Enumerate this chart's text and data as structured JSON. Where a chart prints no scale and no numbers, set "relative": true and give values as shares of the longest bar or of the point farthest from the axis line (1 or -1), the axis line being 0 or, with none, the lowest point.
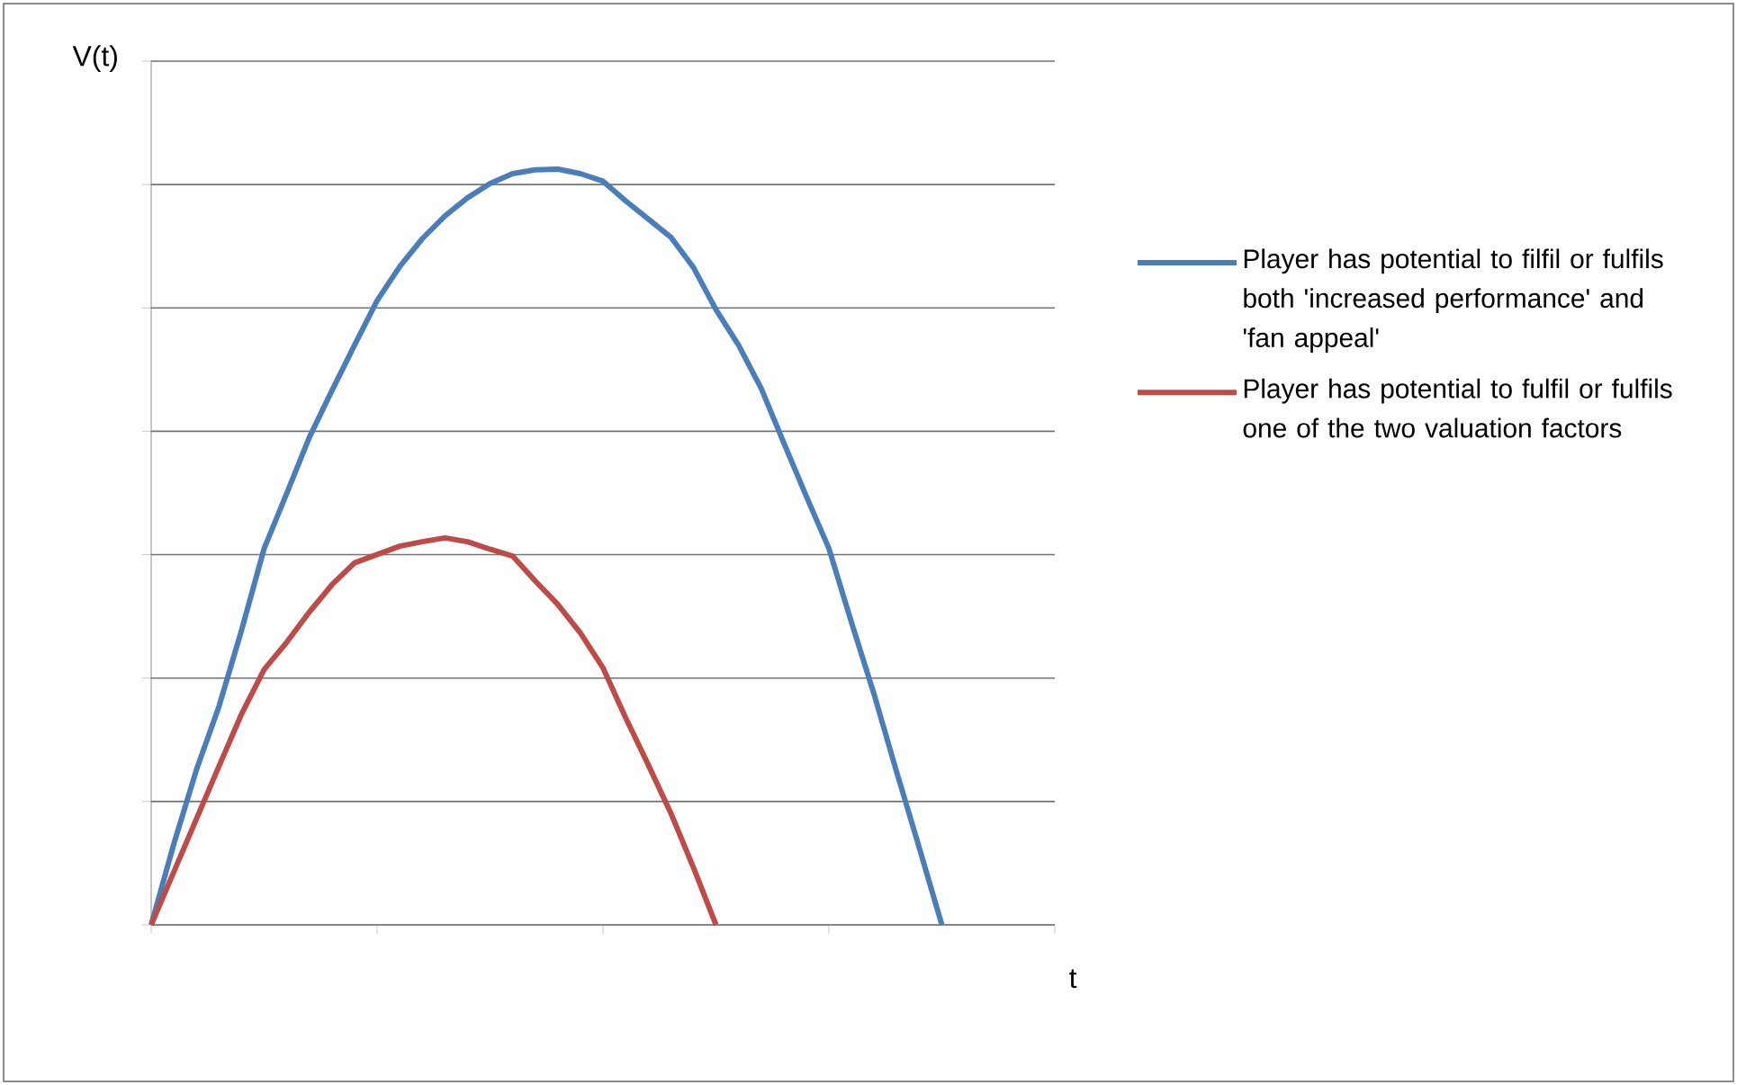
{
  "chart_data": {
    "type": "line",
    "relative": true,
    "xlabel": "t",
    "ylabel": "V(t)",
    "categories": [
      null,
      null,
      null,
      null,
      null,
      null,
      null,
      null,
      null,
      null,
      null,
      null,
      null,
      null,
      null,
      null,
      null,
      null,
      null,
      null,
      null,
      null,
      null,
      null,
      null,
      null,
      null,
      null,
      null,
      null,
      null,
      null,
      null,
      null,
      null,
      null
    ],
    "series": [
      {
        "name": "Player has potential to filfil or fulfils both 'increased performance' and 'fan appeal'",
        "color": "#4a7ebb",
        "values": [
          0,
          0.107,
          0.205,
          0.289,
          0.39,
          0.498,
          0.571,
          0.645,
          0.707,
          0.767,
          0.826,
          0.871,
          0.908,
          0.938,
          0.962,
          0.981,
          0.994,
          0.999,
          1,
          0.994,
          0.984,
          0.958,
          0.934,
          0.91,
          0.87,
          0.814,
          0.767,
          0.71,
          0.638,
          0.567,
          0.498,
          0.4,
          0.305,
          0.202,
          0.102,
          0
        ]
      },
      {
        "name": "Player has potential to fulfil or fulfils one of the two valuation factors",
        "color": "#be4b48",
        "values": [
          0,
          0.07,
          0.14,
          0.21,
          0.279,
          0.338,
          0.374,
          0.414,
          0.45,
          0.479,
          0.49,
          0.501,
          0.507,
          0.512,
          0.507,
          0.497,
          0.488,
          0.455,
          0.424,
          0.386,
          0.34,
          0.274,
          0.212,
          0.148,
          0.076,
          0,
          null,
          null,
          null,
          null,
          null,
          null,
          null,
          null,
          null,
          null
        ]
      }
    ],
    "grid": "y",
    "legend": "right",
    "marker": "none",
    "line_style": "solid"
  }
}
